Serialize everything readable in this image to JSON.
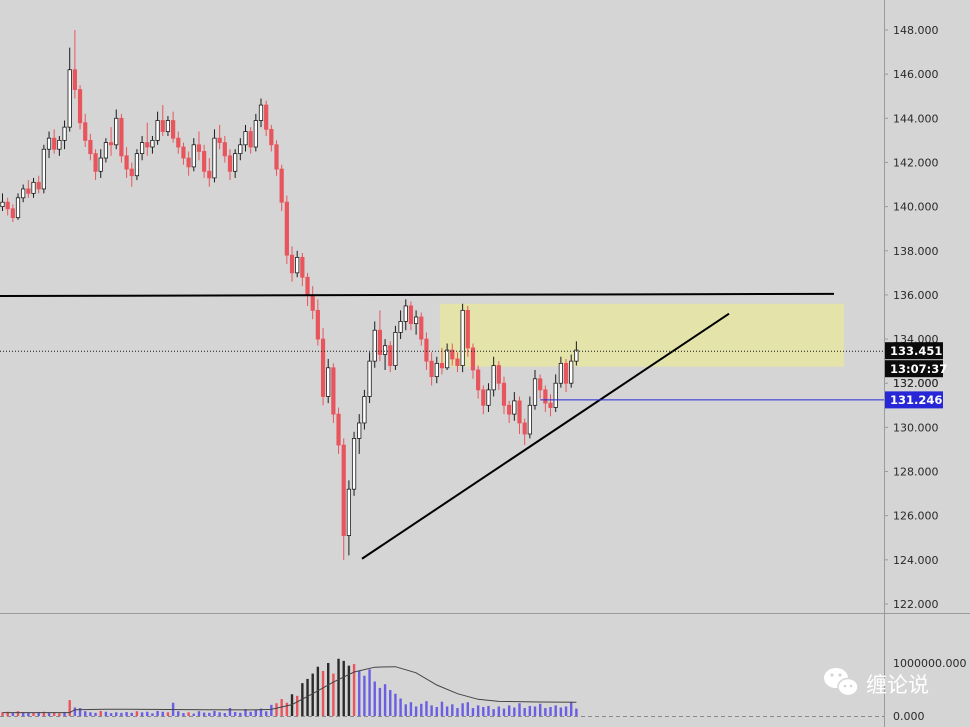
{
  "chart_data": {
    "type": "candlestick",
    "price_axis": {
      "ylim": [
        121.3,
        149.1
      ],
      "ticks": [
        "148.000",
        "146.000",
        "144.000",
        "142.000",
        "140.000",
        "138.000",
        "136.000",
        "134.000",
        "132.000",
        "130.000",
        "128.000",
        "126.000",
        "124.000",
        "122.000"
      ]
    },
    "volume_axis": {
      "ylim": [
        0,
        1150000
      ],
      "ticks": [
        "1000000.000",
        "0.000"
      ]
    },
    "badges": {
      "last_price": "133.451",
      "countdown": "13:07:37",
      "level": "131.246"
    },
    "colors": {
      "background": "#d5d5d5",
      "up": "#1c1c1c",
      "down": "#e8555c",
      "volume_up": "#6a5ee3",
      "level_line": "#2727d8",
      "zone": "#e6e6a2",
      "trend": "#000000"
    },
    "annotations": {
      "resistance_line": {
        "from": [
          0,
          135.95
        ],
        "to": [
          147,
          136.05
        ]
      },
      "support_trendline": {
        "from": [
          64,
          124.05
        ],
        "to": [
          128,
          135.15
        ]
      },
      "supply_zone": {
        "from_bar": 85,
        "to_bar": 148,
        "low": 132.75,
        "high": 135.6
      },
      "level_line_price": 131.246,
      "last_price": 133.451
    },
    "candles": [
      [
        140.0,
        140.6,
        139.8,
        140.2
      ],
      [
        140.2,
        140.4,
        139.6,
        139.9
      ],
      [
        139.9,
        140.1,
        139.3,
        139.5
      ],
      [
        139.5,
        140.6,
        139.4,
        140.4
      ],
      [
        140.4,
        141.0,
        140.2,
        140.8
      ],
      [
        140.8,
        141.2,
        140.4,
        140.6
      ],
      [
        140.6,
        141.3,
        140.4,
        141.1
      ],
      [
        141.1,
        141.4,
        140.6,
        140.8
      ],
      [
        140.8,
        142.8,
        140.6,
        142.6
      ],
      [
        142.6,
        143.4,
        142.2,
        143.1
      ],
      [
        143.1,
        143.5,
        142.4,
        142.6
      ],
      [
        142.6,
        143.2,
        142.3,
        143.0
      ],
      [
        143.0,
        143.9,
        142.6,
        143.6
      ],
      [
        143.6,
        147.2,
        143.4,
        146.2
      ],
      [
        146.2,
        148.0,
        144.9,
        145.3
      ],
      [
        145.3,
        145.5,
        143.5,
        143.8
      ],
      [
        143.8,
        144.2,
        142.7,
        143.0
      ],
      [
        143.0,
        143.3,
        142.1,
        142.4
      ],
      [
        142.4,
        142.6,
        141.2,
        141.6
      ],
      [
        141.6,
        142.6,
        141.3,
        142.2
      ],
      [
        142.2,
        143.1,
        142.0,
        142.9
      ],
      [
        142.9,
        143.6,
        142.3,
        142.8
      ],
      [
        142.8,
        144.4,
        142.6,
        144.0
      ],
      [
        144.0,
        144.2,
        142.0,
        142.3
      ],
      [
        142.3,
        142.7,
        141.3,
        141.7
      ],
      [
        141.7,
        142.0,
        140.9,
        141.4
      ],
      [
        141.4,
        142.6,
        141.2,
        142.4
      ],
      [
        142.4,
        143.2,
        142.1,
        142.9
      ],
      [
        142.9,
        143.8,
        142.3,
        142.7
      ],
      [
        142.7,
        143.2,
        142.4,
        143.0
      ],
      [
        143.0,
        144.3,
        142.8,
        143.9
      ],
      [
        143.9,
        144.6,
        143.2,
        143.4
      ],
      [
        143.4,
        144.1,
        143.2,
        143.9
      ],
      [
        143.9,
        144.3,
        142.9,
        143.1
      ],
      [
        143.1,
        143.4,
        142.4,
        142.7
      ],
      [
        142.7,
        142.9,
        141.9,
        142.2
      ],
      [
        142.2,
        142.5,
        141.4,
        141.8
      ],
      [
        141.8,
        143.1,
        141.6,
        142.8
      ],
      [
        142.8,
        143.4,
        142.1,
        142.5
      ],
      [
        142.5,
        142.8,
        141.3,
        141.6
      ],
      [
        141.6,
        142.2,
        140.9,
        141.3
      ],
      [
        141.3,
        143.5,
        141.1,
        143.1
      ],
      [
        143.1,
        143.7,
        142.6,
        142.9
      ],
      [
        142.9,
        143.2,
        142.0,
        142.3
      ],
      [
        142.3,
        142.6,
        141.2,
        141.6
      ],
      [
        141.6,
        142.6,
        141.3,
        142.4
      ],
      [
        142.4,
        143.1,
        142.1,
        142.8
      ],
      [
        142.8,
        143.7,
        142.5,
        143.4
      ],
      [
        143.4,
        143.6,
        142.4,
        142.7
      ],
      [
        142.7,
        144.2,
        142.5,
        143.9
      ],
      [
        143.9,
        144.9,
        143.6,
        144.6
      ],
      [
        144.6,
        144.8,
        143.2,
        143.5
      ],
      [
        143.5,
        143.7,
        142.5,
        142.8
      ],
      [
        142.8,
        143.0,
        141.4,
        141.7
      ],
      [
        141.7,
        141.9,
        139.8,
        140.2
      ],
      [
        140.2,
        140.5,
        137.4,
        137.8
      ],
      [
        137.8,
        138.2,
        136.6,
        137.0
      ],
      [
        137.0,
        138.0,
        136.8,
        137.7
      ],
      [
        137.7,
        137.9,
        136.4,
        136.8
      ],
      [
        136.8,
        137.0,
        135.5,
        136.0
      ],
      [
        136.0,
        136.4,
        134.9,
        135.3
      ],
      [
        135.3,
        135.8,
        133.7,
        134.0
      ],
      [
        134.0,
        134.5,
        131.0,
        131.4
      ],
      [
        131.4,
        133.1,
        131.1,
        132.7
      ],
      [
        132.7,
        132.9,
        130.2,
        130.6
      ],
      [
        130.6,
        130.9,
        128.8,
        129.2
      ],
      [
        129.2,
        129.5,
        124.0,
        125.1
      ],
      [
        125.1,
        127.6,
        124.2,
        127.2
      ],
      [
        127.2,
        129.8,
        126.9,
        129.5
      ],
      [
        129.5,
        130.6,
        128.8,
        130.2
      ],
      [
        130.2,
        131.7,
        129.9,
        131.4
      ],
      [
        131.4,
        133.4,
        131.1,
        133.0
      ],
      [
        133.0,
        134.8,
        132.7,
        134.4
      ],
      [
        134.4,
        135.3,
        133.0,
        133.3
      ],
      [
        133.3,
        134.0,
        132.6,
        133.7
      ],
      [
        133.7,
        133.9,
        132.5,
        132.8
      ],
      [
        132.8,
        134.6,
        132.6,
        134.3
      ],
      [
        134.3,
        135.3,
        134.0,
        134.8
      ],
      [
        134.8,
        135.8,
        134.4,
        135.5
      ],
      [
        135.5,
        135.7,
        134.4,
        134.7
      ],
      [
        134.7,
        135.3,
        134.2,
        135.0
      ],
      [
        135.0,
        135.2,
        133.7,
        134.0
      ],
      [
        134.0,
        134.3,
        132.6,
        133.0
      ],
      [
        133.0,
        133.4,
        131.9,
        132.3
      ],
      [
        132.3,
        133.2,
        132.0,
        132.9
      ],
      [
        132.9,
        133.6,
        132.4,
        132.7
      ],
      [
        132.7,
        133.8,
        132.6,
        133.5
      ],
      [
        133.5,
        133.8,
        132.8,
        133.1
      ],
      [
        133.1,
        133.4,
        132.5,
        132.8
      ],
      [
        132.8,
        135.6,
        132.5,
        135.3
      ],
      [
        135.3,
        135.5,
        133.2,
        133.6
      ],
      [
        133.6,
        133.8,
        132.2,
        132.6
      ],
      [
        132.6,
        132.8,
        131.3,
        131.7
      ],
      [
        131.7,
        131.9,
        130.6,
        131.0
      ],
      [
        131.0,
        132.0,
        130.7,
        131.7
      ],
      [
        131.7,
        133.2,
        131.4,
        132.8
      ],
      [
        132.8,
        133.0,
        131.7,
        132.0
      ],
      [
        132.0,
        132.3,
        130.6,
        131.0
      ],
      [
        131.0,
        131.2,
        130.2,
        130.6
      ],
      [
        130.6,
        131.6,
        130.3,
        131.2
      ],
      [
        131.2,
        131.4,
        129.7,
        130.2
      ],
      [
        130.2,
        130.4,
        129.2,
        129.7
      ],
      [
        129.7,
        131.4,
        129.5,
        131.0
      ],
      [
        131.0,
        132.6,
        130.8,
        132.2
      ],
      [
        132.2,
        132.4,
        131.3,
        131.7
      ],
      [
        131.7,
        131.9,
        130.7,
        131.1
      ],
      [
        131.1,
        131.5,
        130.5,
        130.9
      ],
      [
        130.9,
        132.4,
        130.7,
        132.0
      ],
      [
        132.0,
        133.2,
        131.8,
        132.9
      ],
      [
        132.9,
        133.1,
        131.6,
        132.0
      ],
      [
        132.0,
        133.3,
        131.8,
        133.0
      ],
      [
        133.0,
        133.9,
        132.8,
        133.5
      ]
    ],
    "volume": [
      [
        70000,
        0
      ],
      [
        80000,
        0
      ],
      [
        60000,
        1
      ],
      [
        90000,
        0
      ],
      [
        70000,
        1
      ],
      [
        65000,
        1
      ],
      [
        60000,
        0
      ],
      [
        75000,
        1
      ],
      [
        80000,
        0
      ],
      [
        55000,
        1
      ],
      [
        70000,
        0
      ],
      [
        50000,
        0
      ],
      [
        75000,
        1
      ],
      [
        300000,
        0
      ],
      [
        160000,
        1
      ],
      [
        150000,
        1
      ],
      [
        90000,
        1
      ],
      [
        70000,
        1
      ],
      [
        60000,
        1
      ],
      [
        95000,
        0
      ],
      [
        80000,
        1
      ],
      [
        55000,
        1
      ],
      [
        70000,
        1
      ],
      [
        60000,
        1
      ],
      [
        75000,
        1
      ],
      [
        60000,
        1
      ],
      [
        90000,
        0
      ],
      [
        70000,
        1
      ],
      [
        80000,
        1
      ],
      [
        50000,
        1
      ],
      [
        95000,
        1
      ],
      [
        80000,
        1
      ],
      [
        70000,
        0
      ],
      [
        250000,
        1
      ],
      [
        90000,
        1
      ],
      [
        55000,
        1
      ],
      [
        70000,
        0
      ],
      [
        45000,
        1
      ],
      [
        90000,
        1
      ],
      [
        65000,
        1
      ],
      [
        60000,
        1
      ],
      [
        95000,
        1
      ],
      [
        70000,
        1
      ],
      [
        55000,
        1
      ],
      [
        150000,
        1
      ],
      [
        75000,
        1
      ],
      [
        60000,
        1
      ],
      [
        130000,
        1
      ],
      [
        80000,
        1
      ],
      [
        120000,
        1
      ],
      [
        140000,
        1
      ],
      [
        90000,
        1
      ],
      [
        210000,
        1
      ],
      [
        240000,
        0
      ],
      [
        320000,
        0
      ],
      [
        250000,
        0
      ],
      [
        410000,
        0
      ],
      [
        380000,
        1
      ],
      [
        620000,
        0
      ],
      [
        700000,
        0
      ],
      [
        800000,
        0
      ],
      [
        930000,
        0
      ],
      [
        850000,
        1
      ],
      [
        1000000,
        0
      ],
      [
        800000,
        1
      ],
      [
        1080000,
        0
      ],
      [
        1040000,
        0
      ],
      [
        950000,
        0
      ],
      [
        980000,
        1
      ],
      [
        850000,
        1
      ],
      [
        760000,
        1
      ],
      [
        880000,
        1
      ],
      [
        650000,
        1
      ],
      [
        530000,
        1
      ],
      [
        600000,
        1
      ],
      [
        490000,
        1
      ],
      [
        420000,
        1
      ],
      [
        330000,
        1
      ],
      [
        220000,
        1
      ],
      [
        260000,
        1
      ],
      [
        180000,
        1
      ],
      [
        230000,
        1
      ],
      [
        280000,
        1
      ],
      [
        200000,
        1
      ],
      [
        170000,
        1
      ],
      [
        270000,
        1
      ],
      [
        180000,
        1
      ],
      [
        220000,
        1
      ],
      [
        150000,
        1
      ],
      [
        240000,
        1
      ],
      [
        260000,
        1
      ],
      [
        150000,
        1
      ],
      [
        200000,
        1
      ],
      [
        170000,
        1
      ],
      [
        190000,
        1
      ],
      [
        130000,
        1
      ],
      [
        180000,
        1
      ],
      [
        140000,
        1
      ],
      [
        200000,
        1
      ],
      [
        160000,
        1
      ],
      [
        240000,
        1
      ],
      [
        150000,
        1
      ],
      [
        190000,
        1
      ],
      [
        180000,
        1
      ],
      [
        230000,
        1
      ],
      [
        150000,
        1
      ],
      [
        170000,
        1
      ],
      [
        200000,
        1
      ],
      [
        160000,
        1
      ],
      [
        180000,
        1
      ],
      [
        260000,
        1
      ],
      [
        140000,
        1
      ]
    ],
    "volume_ma": [
      [
        0,
        65000
      ],
      [
        13,
        65000
      ],
      [
        14,
        118000
      ],
      [
        20,
        128000
      ],
      [
        40,
        118000
      ],
      [
        48,
        115000
      ],
      [
        52,
        125000
      ],
      [
        56,
        215000
      ],
      [
        60,
        420000
      ],
      [
        64,
        640000
      ],
      [
        68,
        830000
      ],
      [
        72,
        920000
      ],
      [
        76,
        930000
      ],
      [
        80,
        815000
      ],
      [
        84,
        585000
      ],
      [
        88,
        420000
      ],
      [
        92,
        315000
      ],
      [
        96,
        275000
      ],
      [
        104,
        265000
      ],
      [
        111,
        260000
      ]
    ],
    "watermark": {
      "text": "缠论说",
      "icon": "wechat-icon"
    }
  }
}
